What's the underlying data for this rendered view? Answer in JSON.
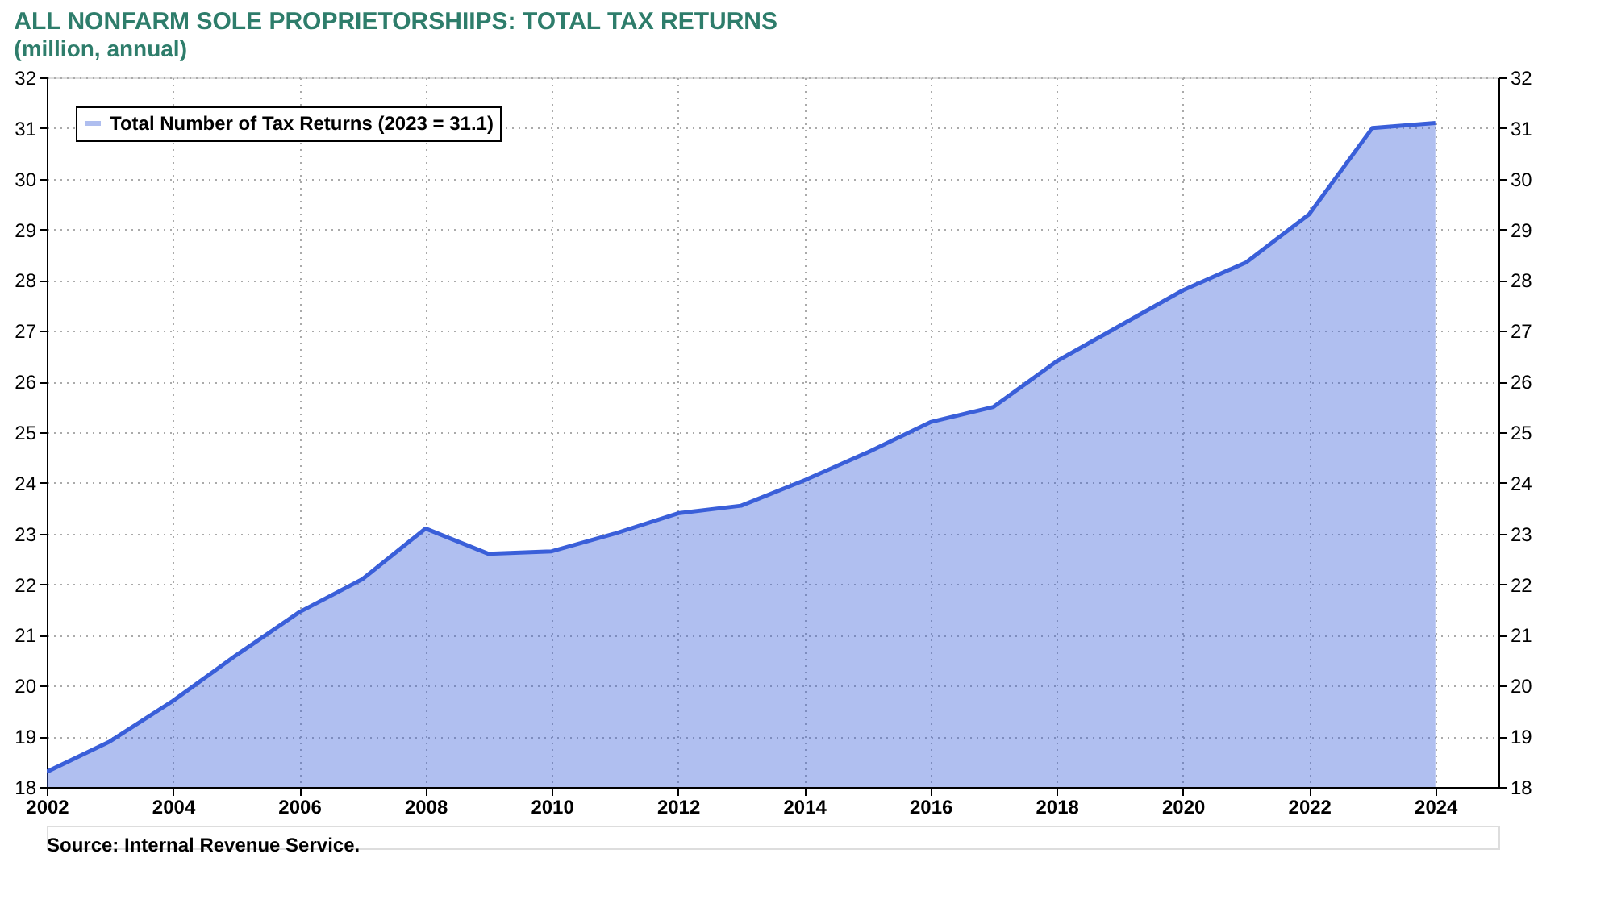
{
  "chart_data": {
    "type": "area",
    "title": "ALL NONFARM SOLE PROPRIETORSHIIPS: TOTAL TAX RETURNS",
    "subtitle": "(million, annual)",
    "x": [
      2002,
      2003,
      2004,
      2005,
      2006,
      2007,
      2008,
      2009,
      2010,
      2011,
      2012,
      2013,
      2014,
      2015,
      2016,
      2017,
      2018,
      2019,
      2020,
      2021,
      2022,
      2023,
      2024
    ],
    "series": [
      {
        "name": "Total Number of Tax Returns (2023 = 31.1)",
        "color": "#3a5fd9",
        "values": [
          18.3,
          18.9,
          19.7,
          20.6,
          21.45,
          22.1,
          23.1,
          22.6,
          22.65,
          23.0,
          23.4,
          23.55,
          24.05,
          24.6,
          25.2,
          25.5,
          26.4,
          27.1,
          27.8,
          28.35,
          29.3,
          31.0,
          31.1
        ]
      }
    ],
    "xlim": [
      2002,
      2025
    ],
    "xticks": [
      2002,
      2004,
      2006,
      2008,
      2010,
      2012,
      2014,
      2016,
      2018,
      2020,
      2022,
      2024
    ],
    "ylim": [
      18,
      32
    ],
    "yticks": [
      18,
      19,
      20,
      21,
      22,
      23,
      24,
      25,
      26,
      27,
      28,
      29,
      30,
      31,
      32
    ],
    "y2lim": [
      18,
      32
    ],
    "y2ticks": [
      18,
      19,
      20,
      21,
      22,
      23,
      24,
      25,
      26,
      27,
      28,
      29,
      30,
      31,
      32
    ],
    "grid": true,
    "legend": "top left",
    "marker": "none",
    "annotations": [
      "Source: Internal Revenue Service."
    ]
  }
}
